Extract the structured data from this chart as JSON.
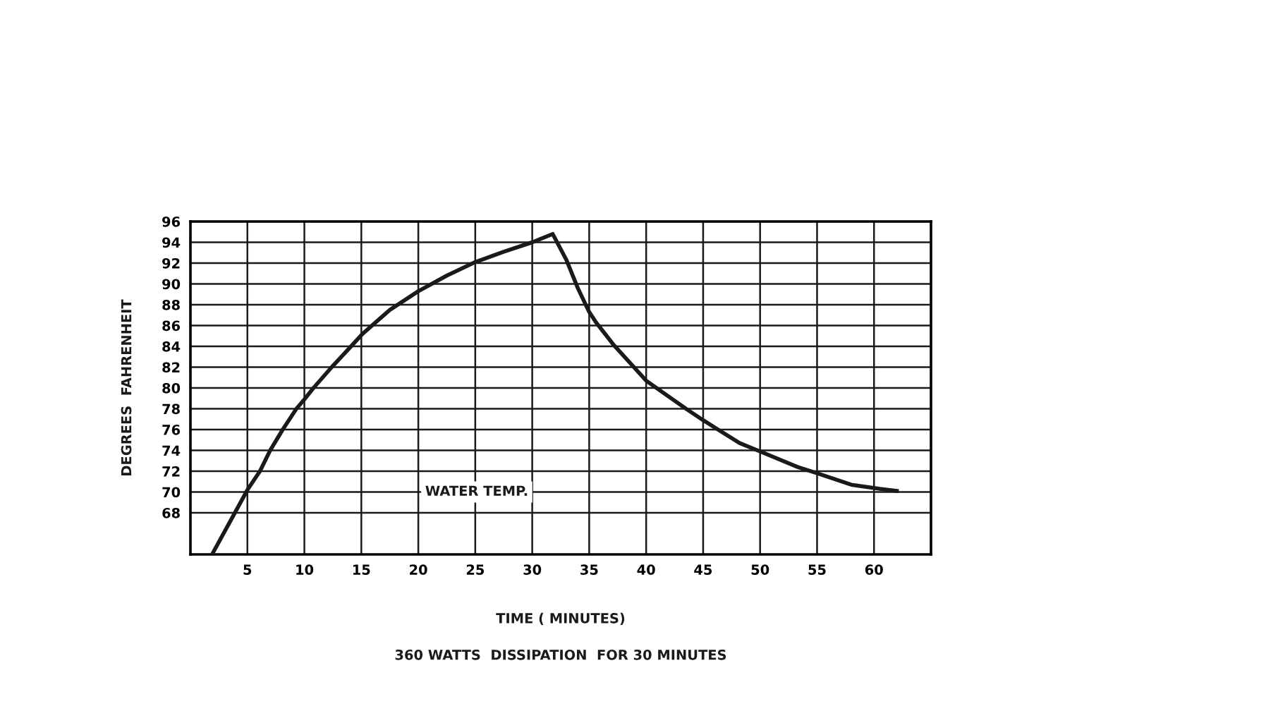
{
  "chart_data": {
    "type": "line",
    "xlabel": "TIME ( MINUTES)",
    "ylabel": "DEGREES  FAHRENHEIT",
    "annotations": [
      "360 WATTS  DISSIPATION  FOR 30 MINUTES"
    ],
    "xlim": [
      0,
      65
    ],
    "ylim": [
      64,
      96
    ],
    "xticks": [
      5,
      10,
      15,
      20,
      25,
      30,
      35,
      40,
      45,
      50,
      55,
      60
    ],
    "yticks": [
      68,
      70,
      72,
      74,
      76,
      78,
      80,
      82,
      84,
      86,
      88,
      90,
      92,
      94,
      96
    ],
    "grid": true,
    "legend": false,
    "marker": "none",
    "line_style": "solid",
    "series": [
      {
        "name": "WATER TEMP.",
        "color": "#1a1a1a",
        "x": [
          1.9,
          5,
          6.1,
          7,
          8.1,
          9.3,
          10,
          10.8,
          12.4,
          14.1,
          15.1,
          17.5,
          20,
          22.5,
          25,
          27.5,
          30,
          31.8,
          33,
          34,
          35,
          35.6,
          37.1,
          40,
          43.5,
          45,
          48.2,
          50,
          53.3,
          55,
          58,
          60.5,
          62
        ],
        "values": [
          64,
          70.2,
          72,
          74,
          76,
          78,
          78.9,
          80,
          82,
          84,
          85.2,
          87.5,
          89.3,
          90.8,
          92.1,
          93.1,
          94,
          94.8,
          92.3,
          89.6,
          87.3,
          86.3,
          84.2,
          80.7,
          78,
          76.9,
          74.7,
          73.9,
          72.4,
          71.8,
          70.7,
          70.3,
          70.1
        ]
      }
    ]
  }
}
